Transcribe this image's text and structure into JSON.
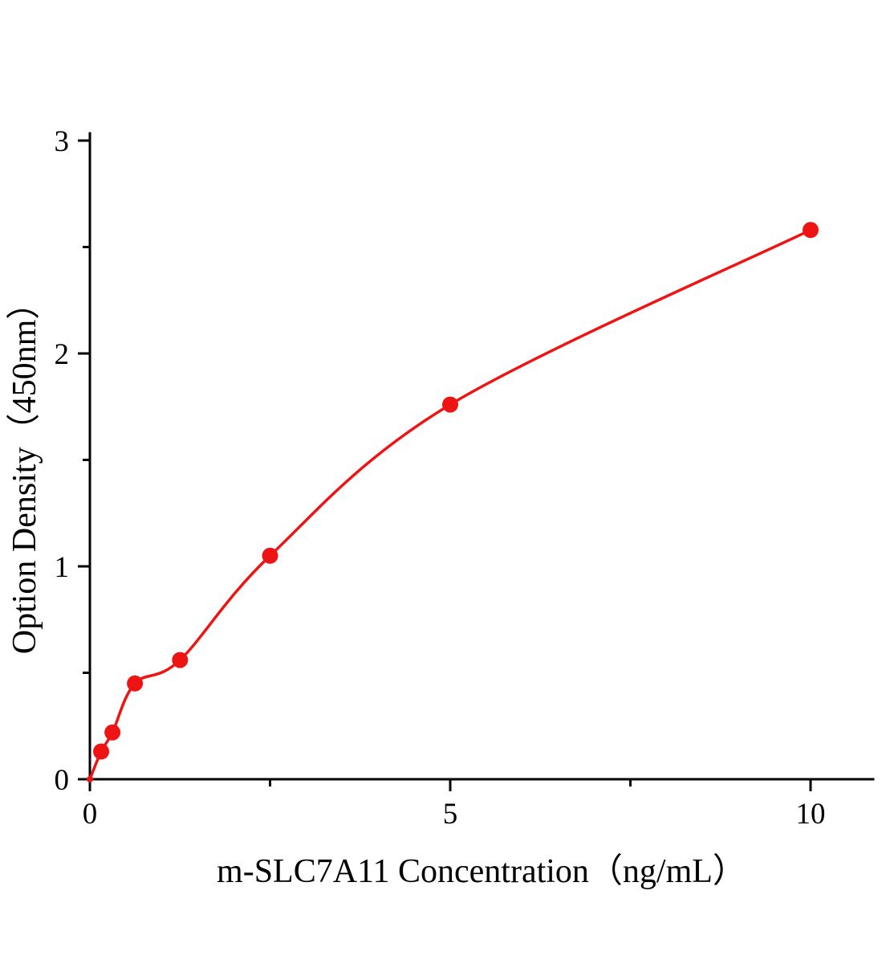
{
  "page": {
    "background": "#ffffff"
  },
  "chart_data": {
    "type": "scatter",
    "subtype": "standard-curve-with-fitted-line",
    "title": "",
    "xlabel": "m-SLC7A11 Concentration（ng/mL）",
    "ylabel": "Option Density（450nm）",
    "x": [
      0,
      0.156,
      0.313,
      0.625,
      1.25,
      2.5,
      5,
      10
    ],
    "y": [
      0.0,
      0.13,
      0.22,
      0.45,
      0.56,
      1.05,
      1.76,
      2.58
    ],
    "xlim": [
      0,
      10.9
    ],
    "ylim": [
      0,
      3
    ],
    "x_ticks": [
      0,
      5,
      10
    ],
    "x_tick_labels": [
      "0",
      "5",
      "10"
    ],
    "x_minor_ticks": [
      2.5,
      7.5
    ],
    "y_ticks": [
      0,
      1,
      2,
      3
    ],
    "y_tick_labels": [
      "0",
      "1",
      "2",
      "3"
    ],
    "y_minor_ticks": [
      0.5,
      1.5,
      2.5
    ],
    "grid": false,
    "legend": "none",
    "marker": "circle",
    "marker_radius": 10,
    "series_color": "#ee1414",
    "axis_color": "#000000"
  }
}
